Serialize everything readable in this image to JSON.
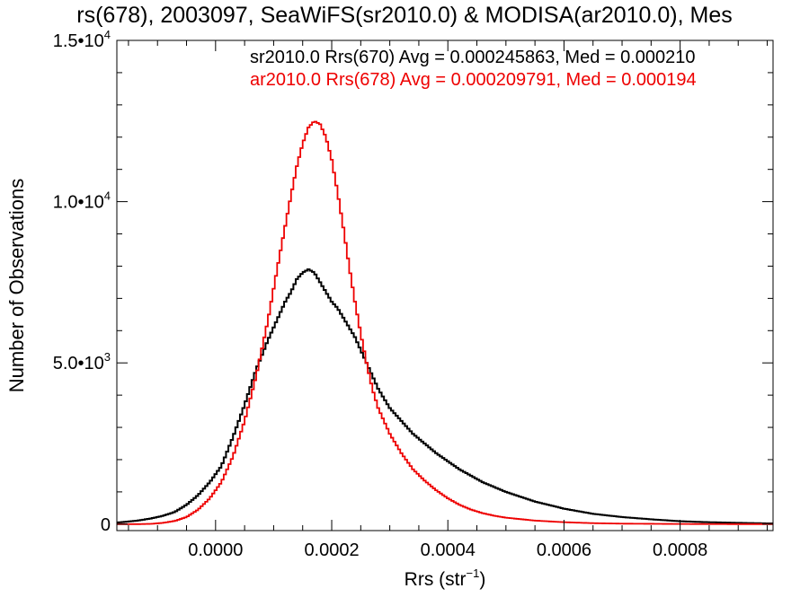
{
  "chart_data": {
    "type": "line",
    "title": "rs(678), 2003097, SeaWiFS(sr2010.0) & MODISA(ar2010.0), Mes",
    "xlabel_base": "Rrs (str",
    "xlabel_sup": "−1",
    "xlabel_close": ")",
    "ylabel": "Number of Observations",
    "xlim": [
      -0.00017,
      0.00096
    ],
    "ylim": [
      -200,
      15000
    ],
    "x_ticks": [
      {
        "value": 0.0,
        "label": "0.0000"
      },
      {
        "value": 0.0002,
        "label": "0.0002"
      },
      {
        "value": 0.0004,
        "label": "0.0004"
      },
      {
        "value": 0.0006,
        "label": "0.0006"
      },
      {
        "value": 0.0008,
        "label": "0.0008"
      }
    ],
    "y_ticks": [
      {
        "value": 0,
        "mantissa": "0",
        "exp": ""
      },
      {
        "value": 5000,
        "mantissa": "5.0•10",
        "exp": "3"
      },
      {
        "value": 10000,
        "mantissa": "1.0•10",
        "exp": "4"
      },
      {
        "value": 15000,
        "mantissa": "1.5•10",
        "exp": "4"
      }
    ],
    "legend": [
      {
        "text": "sr2010.0 Rrs(670) Avg = 0.000245863, Med = 0.000210",
        "color": "#000000"
      },
      {
        "text": "ar2010.0 Rrs(678) Avg = 0.000209791, Med = 0.000194",
        "color": "#ee0000"
      }
    ],
    "series": [
      {
        "color": "#000000",
        "x": [
          -0.00017,
          -0.00015,
          -0.00013,
          -0.00011,
          -9e-05,
          -7e-05,
          -5e-05,
          -3e-05,
          -1e-05,
          1e-05,
          3e-05,
          5e-05,
          7e-05,
          9e-05,
          0.00011,
          0.00012,
          0.00013,
          0.00014,
          0.00015,
          0.00016,
          0.00017,
          0.00018,
          0.00019,
          0.0002,
          0.00021,
          0.00022,
          0.00023,
          0.00024,
          0.00025,
          0.00026,
          0.00027,
          0.00028,
          0.0003,
          0.00032,
          0.00034,
          0.00036,
          0.00038,
          0.0004,
          0.00042,
          0.00044,
          0.00046,
          0.00048,
          0.0005,
          0.00055,
          0.0006,
          0.00065,
          0.0007,
          0.00075,
          0.0008,
          0.00085,
          0.0009,
          0.00096
        ],
        "y": [
          50,
          80,
          120,
          180,
          260,
          380,
          600,
          900,
          1300,
          1800,
          2700,
          3700,
          4800,
          5700,
          6500,
          6900,
          7200,
          7600,
          7800,
          7900,
          7800,
          7500,
          7200,
          6900,
          6700,
          6400,
          6100,
          5800,
          5400,
          5000,
          4600,
          4200,
          3600,
          3200,
          2800,
          2500,
          2200,
          1950,
          1700,
          1500,
          1300,
          1150,
          1000,
          700,
          480,
          320,
          220,
          150,
          90,
          60,
          40,
          20
        ]
      },
      {
        "color": "#ee0000",
        "x": [
          -0.00017,
          -0.00013,
          -0.00011,
          -9e-05,
          -7e-05,
          -5e-05,
          -3e-05,
          -1e-05,
          1e-05,
          3e-05,
          5e-05,
          7e-05,
          9e-05,
          0.00011,
          0.00013,
          0.00014,
          0.00015,
          0.00016,
          0.00017,
          0.00018,
          0.00019,
          0.0002,
          0.00021,
          0.00022,
          0.00023,
          0.00024,
          0.00025,
          0.00026,
          0.00027,
          0.00028,
          0.0003,
          0.00032,
          0.00034,
          0.00036,
          0.00038,
          0.0004,
          0.00042,
          0.00044,
          0.00046,
          0.00048,
          0.0005,
          0.00055,
          0.0006,
          0.00065,
          0.0007,
          0.0008,
          0.0009,
          0.00096
        ],
        "y": [
          0,
          0,
          10,
          40,
          100,
          220,
          450,
          800,
          1300,
          2100,
          3200,
          4600,
          6300,
          8300,
          10200,
          11100,
          11800,
          12300,
          12500,
          12400,
          12000,
          11300,
          10300,
          9200,
          8000,
          6900,
          5900,
          5000,
          4200,
          3600,
          2800,
          2200,
          1700,
          1350,
          1050,
          800,
          600,
          450,
          340,
          260,
          200,
          110,
          60,
          30,
          15,
          5,
          0,
          0
        ]
      }
    ]
  }
}
